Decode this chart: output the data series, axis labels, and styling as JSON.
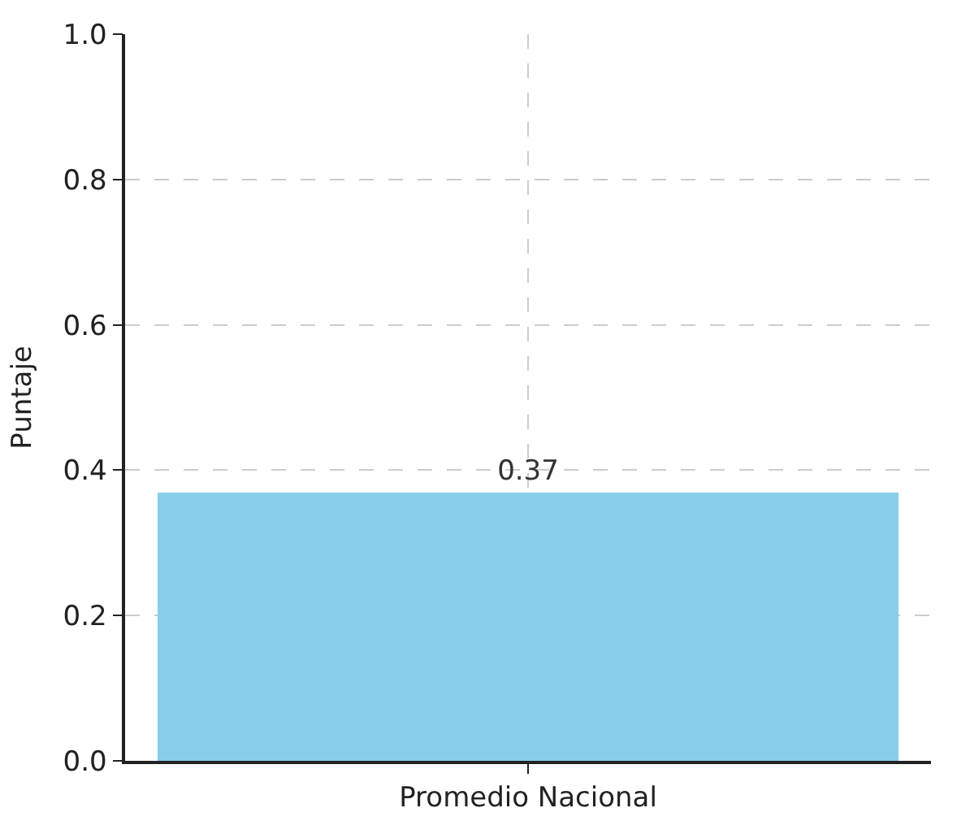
{
  "chart_data": {
    "type": "bar",
    "ylabel": "Puntaje",
    "categories": [
      "Promedio Nacional"
    ],
    "values": [
      0.37
    ],
    "color": "#87ceeb",
    "ylim": [
      0,
      1.0
    ],
    "yticks": [
      {
        "value": 0,
        "label": "0.0"
      },
      0.2,
      0.4,
      0.6,
      0.8,
      {
        "value": 1.0,
        "label": "1.0"
      }
    ],
    "grid": true,
    "data_labels": true
  }
}
